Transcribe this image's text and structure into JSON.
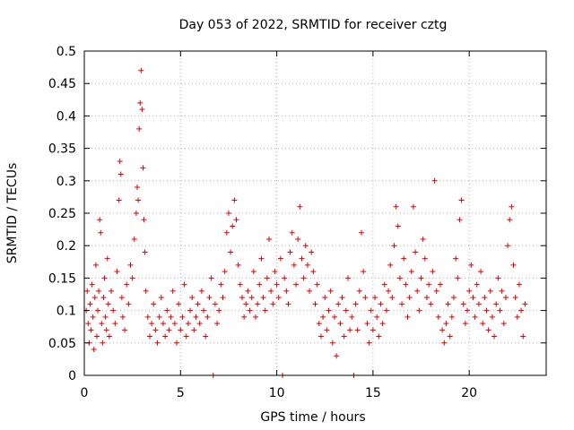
{
  "chart_data": {
    "type": "scatter",
    "title": "Day 053 of 2022, SRMTID for receiver cztg",
    "xlabel": "GPS time / hours",
    "ylabel": "SRMTID / TECUs",
    "xlim": [
      0,
      24
    ],
    "ylim": [
      0,
      0.5
    ],
    "xticks": [
      0,
      5,
      10,
      15,
      20
    ],
    "yticks": [
      0,
      0.05,
      0.1,
      0.15,
      0.2,
      0.25,
      0.3,
      0.35,
      0.4,
      0.45,
      0.5
    ],
    "ytick_labels": [
      "0",
      "0.05",
      "0.1",
      "0.15",
      "0.2",
      "0.25",
      "0.3",
      "0.35",
      "0.4",
      "0.45",
      "0.5"
    ],
    "grid": true,
    "marker": "plus",
    "color": "#e00000",
    "series": [
      {
        "points": [
          [
            0.1,
            0.1
          ],
          [
            0.15,
            0.13
          ],
          [
            0.2,
            0.08
          ],
          [
            0.25,
            0.05
          ],
          [
            0.3,
            0.11
          ],
          [
            0.35,
            0.07
          ],
          [
            0.4,
            0.14
          ],
          [
            0.45,
            0.09
          ],
          [
            0.5,
            0.04
          ],
          [
            0.55,
            0.12
          ],
          [
            0.6,
            0.17
          ],
          [
            0.65,
            0.06
          ],
          [
            0.7,
            0.1
          ],
          [
            0.75,
            0.13
          ],
          [
            0.8,
            0.24
          ],
          [
            0.85,
            0.22
          ],
          [
            0.9,
            0.08
          ],
          [
            0.95,
            0.05
          ],
          [
            1.0,
            0.12
          ],
          [
            1.05,
            0.15
          ],
          [
            1.1,
            0.09
          ],
          [
            1.15,
            0.07
          ],
          [
            1.2,
            0.18
          ],
          [
            1.25,
            0.11
          ],
          [
            1.3,
            0.06
          ],
          [
            1.4,
            0.13
          ],
          [
            1.5,
            0.1
          ],
          [
            1.6,
            0.08
          ],
          [
            1.7,
            0.16
          ],
          [
            1.8,
            0.27
          ],
          [
            1.85,
            0.33
          ],
          [
            1.9,
            0.31
          ],
          [
            1.95,
            0.12
          ],
          [
            2.0,
            0.09
          ],
          [
            2.1,
            0.07
          ],
          [
            2.2,
            0.14
          ],
          [
            2.3,
            0.11
          ],
          [
            2.4,
            0.17
          ],
          [
            2.5,
            0.15
          ],
          [
            2.6,
            0.21
          ],
          [
            2.7,
            0.25
          ],
          [
            2.75,
            0.29
          ],
          [
            2.8,
            0.27
          ],
          [
            2.85,
            0.38
          ],
          [
            2.9,
            0.42
          ],
          [
            2.95,
            0.47
          ],
          [
            3.0,
            0.41
          ],
          [
            3.05,
            0.32
          ],
          [
            3.1,
            0.24
          ],
          [
            3.15,
            0.19
          ],
          [
            3.2,
            0.13
          ],
          [
            3.3,
            0.09
          ],
          [
            3.4,
            0.06
          ],
          [
            3.5,
            0.08
          ],
          [
            3.6,
            0.11
          ],
          [
            3.7,
            0.07
          ],
          [
            3.8,
            0.05
          ],
          [
            3.9,
            0.09
          ],
          [
            4.0,
            0.12
          ],
          [
            4.1,
            0.08
          ],
          [
            4.2,
            0.06
          ],
          [
            4.3,
            0.1
          ],
          [
            4.4,
            0.07
          ],
          [
            4.5,
            0.09
          ],
          [
            4.6,
            0.13
          ],
          [
            4.7,
            0.08
          ],
          [
            4.8,
            0.05
          ],
          [
            4.9,
            0.11
          ],
          [
            5.0,
            0.07
          ],
          [
            5.1,
            0.09
          ],
          [
            5.2,
            0.14
          ],
          [
            5.3,
            0.06
          ],
          [
            5.4,
            0.08
          ],
          [
            5.5,
            0.1
          ],
          [
            5.6,
            0.12
          ],
          [
            5.7,
            0.07
          ],
          [
            5.8,
            0.09
          ],
          [
            5.9,
            0.11
          ],
          [
            6.0,
            0.08
          ],
          [
            6.1,
            0.13
          ],
          [
            6.2,
            0.1
          ],
          [
            6.3,
            0.06
          ],
          [
            6.4,
            0.09
          ],
          [
            6.5,
            0.12
          ],
          [
            6.6,
            0.15
          ],
          [
            6.7,
            0.0
          ],
          [
            6.8,
            0.11
          ],
          [
            6.9,
            0.08
          ],
          [
            7.0,
            0.1
          ],
          [
            7.1,
            0.14
          ],
          [
            7.2,
            0.12
          ],
          [
            7.3,
            0.16
          ],
          [
            7.4,
            0.22
          ],
          [
            7.5,
            0.25
          ],
          [
            7.6,
            0.19
          ],
          [
            7.7,
            0.23
          ],
          [
            7.8,
            0.27
          ],
          [
            7.9,
            0.24
          ],
          [
            8.0,
            0.17
          ],
          [
            8.1,
            0.14
          ],
          [
            8.2,
            0.12
          ],
          [
            8.3,
            0.09
          ],
          [
            8.4,
            0.11
          ],
          [
            8.5,
            0.13
          ],
          [
            8.6,
            0.1
          ],
          [
            8.7,
            0.12
          ],
          [
            8.8,
            0.16
          ],
          [
            8.9,
            0.09
          ],
          [
            9.0,
            0.11
          ],
          [
            9.1,
            0.14
          ],
          [
            9.2,
            0.18
          ],
          [
            9.3,
            0.12
          ],
          [
            9.4,
            0.1
          ],
          [
            9.5,
            0.15
          ],
          [
            9.6,
            0.21
          ],
          [
            9.7,
            0.13
          ],
          [
            9.8,
            0.11
          ],
          [
            9.9,
            0.16
          ],
          [
            10.0,
            0.14
          ],
          [
            10.1,
            0.12
          ],
          [
            10.2,
            0.18
          ],
          [
            10.3,
            0.0
          ],
          [
            10.4,
            0.15
          ],
          [
            10.5,
            0.13
          ],
          [
            10.6,
            0.11
          ],
          [
            10.7,
            0.19
          ],
          [
            10.8,
            0.22
          ],
          [
            10.9,
            0.17
          ],
          [
            11.0,
            0.14
          ],
          [
            11.1,
            0.21
          ],
          [
            11.2,
            0.26
          ],
          [
            11.3,
            0.18
          ],
          [
            11.4,
            0.15
          ],
          [
            11.5,
            0.2
          ],
          [
            11.6,
            0.17
          ],
          [
            11.7,
            0.13
          ],
          [
            11.8,
            0.19
          ],
          [
            11.9,
            0.16
          ],
          [
            12.0,
            0.11
          ],
          [
            12.1,
            0.14
          ],
          [
            12.2,
            0.08
          ],
          [
            12.3,
            0.06
          ],
          [
            12.4,
            0.09
          ],
          [
            12.5,
            0.12
          ],
          [
            12.6,
            0.07
          ],
          [
            12.7,
            0.1
          ],
          [
            12.8,
            0.13
          ],
          [
            12.9,
            0.05
          ],
          [
            13.0,
            0.09
          ],
          [
            13.1,
            0.03
          ],
          [
            13.2,
            0.11
          ],
          [
            13.3,
            0.08
          ],
          [
            13.4,
            0.12
          ],
          [
            13.5,
            0.06
          ],
          [
            13.6,
            0.1
          ],
          [
            13.7,
            0.15
          ],
          [
            13.8,
            0.07
          ],
          [
            13.9,
            0.09
          ],
          [
            14.0,
            0.0
          ],
          [
            14.1,
            0.11
          ],
          [
            14.2,
            0.07
          ],
          [
            14.3,
            0.13
          ],
          [
            14.4,
            0.22
          ],
          [
            14.5,
            0.16
          ],
          [
            14.6,
            0.12
          ],
          [
            14.7,
            0.08
          ],
          [
            14.8,
            0.05
          ],
          [
            14.9,
            0.1
          ],
          [
            15.0,
            0.07
          ],
          [
            15.1,
            0.12
          ],
          [
            15.2,
            0.09
          ],
          [
            15.3,
            0.06
          ],
          [
            15.4,
            0.11
          ],
          [
            15.5,
            0.08
          ],
          [
            15.6,
            0.14
          ],
          [
            15.7,
            0.1
          ],
          [
            15.8,
            0.13
          ],
          [
            15.9,
            0.17
          ],
          [
            16.0,
            0.12
          ],
          [
            16.1,
            0.2
          ],
          [
            16.2,
            0.26
          ],
          [
            16.3,
            0.23
          ],
          [
            16.4,
            0.15
          ],
          [
            16.5,
            0.11
          ],
          [
            16.6,
            0.18
          ],
          [
            16.7,
            0.14
          ],
          [
            16.8,
            0.09
          ],
          [
            16.9,
            0.12
          ],
          [
            17.0,
            0.16
          ],
          [
            17.1,
            0.26
          ],
          [
            17.2,
            0.19
          ],
          [
            17.3,
            0.13
          ],
          [
            17.4,
            0.1
          ],
          [
            17.5,
            0.15
          ],
          [
            17.6,
            0.21
          ],
          [
            17.7,
            0.18
          ],
          [
            17.8,
            0.12
          ],
          [
            17.9,
            0.14
          ],
          [
            18.0,
            0.11
          ],
          [
            18.1,
            0.16
          ],
          [
            18.2,
            0.3
          ],
          [
            18.3,
            0.13
          ],
          [
            18.4,
            0.09
          ],
          [
            18.5,
            0.14
          ],
          [
            18.6,
            0.07
          ],
          [
            18.7,
            0.05
          ],
          [
            18.8,
            0.08
          ],
          [
            18.9,
            0.11
          ],
          [
            19.0,
            0.06
          ],
          [
            19.1,
            0.09
          ],
          [
            19.2,
            0.12
          ],
          [
            19.3,
            0.18
          ],
          [
            19.4,
            0.15
          ],
          [
            19.5,
            0.24
          ],
          [
            19.6,
            0.27
          ],
          [
            19.7,
            0.11
          ],
          [
            19.8,
            0.08
          ],
          [
            19.9,
            0.1
          ],
          [
            20.0,
            0.13
          ],
          [
            20.1,
            0.17
          ],
          [
            20.2,
            0.12
          ],
          [
            20.3,
            0.09
          ],
          [
            20.4,
            0.14
          ],
          [
            20.5,
            0.11
          ],
          [
            20.6,
            0.16
          ],
          [
            20.7,
            0.08
          ],
          [
            20.8,
            0.12
          ],
          [
            20.9,
            0.1
          ],
          [
            21.0,
            0.07
          ],
          [
            21.1,
            0.13
          ],
          [
            21.2,
            0.09
          ],
          [
            21.3,
            0.06
          ],
          [
            21.4,
            0.11
          ],
          [
            21.5,
            0.15
          ],
          [
            21.6,
            0.1
          ],
          [
            21.7,
            0.13
          ],
          [
            21.8,
            0.08
          ],
          [
            21.9,
            0.12
          ],
          [
            22.0,
            0.2
          ],
          [
            22.1,
            0.24
          ],
          [
            22.2,
            0.26
          ],
          [
            22.3,
            0.17
          ],
          [
            22.4,
            0.12
          ],
          [
            22.5,
            0.09
          ],
          [
            22.6,
            0.14
          ],
          [
            22.7,
            0.1
          ],
          [
            22.8,
            0.06
          ],
          [
            22.9,
            0.11
          ]
        ]
      }
    ]
  }
}
